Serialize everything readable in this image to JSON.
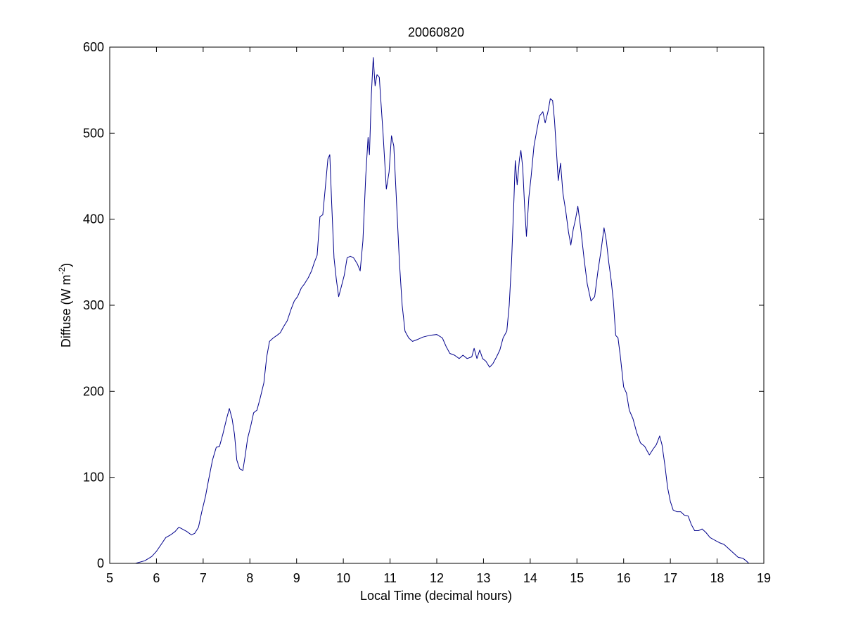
{
  "chart_data": {
    "type": "line",
    "title": "20060820",
    "xlabel": "Local Time (decimal hours)",
    "ylabel": {
      "base": "Diffuse (W m",
      "superscript": "-2",
      "close": ")"
    },
    "xlim": [
      5,
      19
    ],
    "ylim": [
      0,
      600
    ],
    "x_ticks": [
      5,
      6,
      7,
      8,
      9,
      10,
      11,
      12,
      13,
      14,
      15,
      16,
      17,
      18,
      19
    ],
    "y_ticks": [
      0,
      100,
      200,
      300,
      400,
      500,
      600
    ],
    "grid": false,
    "line_color": "#00008b",
    "series": [
      {
        "points": [
          [
            5.55,
            0
          ],
          [
            5.75,
            3
          ],
          [
            5.9,
            8
          ],
          [
            6.0,
            14
          ],
          [
            6.1,
            22
          ],
          [
            6.2,
            30
          ],
          [
            6.3,
            33
          ],
          [
            6.4,
            37
          ],
          [
            6.48,
            42
          ],
          [
            6.55,
            40
          ],
          [
            6.65,
            37
          ],
          [
            6.75,
            33
          ],
          [
            6.82,
            35
          ],
          [
            6.9,
            42
          ],
          [
            6.97,
            60
          ],
          [
            7.05,
            78
          ],
          [
            7.12,
            98
          ],
          [
            7.2,
            120
          ],
          [
            7.28,
            135
          ],
          [
            7.35,
            136
          ],
          [
            7.42,
            150
          ],
          [
            7.5,
            168
          ],
          [
            7.56,
            180
          ],
          [
            7.62,
            168
          ],
          [
            7.67,
            150
          ],
          [
            7.72,
            120
          ],
          [
            7.78,
            110
          ],
          [
            7.85,
            108
          ],
          [
            7.9,
            125
          ],
          [
            7.95,
            145
          ],
          [
            8.02,
            160
          ],
          [
            8.08,
            175
          ],
          [
            8.15,
            178
          ],
          [
            8.22,
            192
          ],
          [
            8.3,
            210
          ],
          [
            8.36,
            240
          ],
          [
            8.42,
            258
          ],
          [
            8.5,
            262
          ],
          [
            8.58,
            265
          ],
          [
            8.65,
            268
          ],
          [
            8.72,
            275
          ],
          [
            8.8,
            282
          ],
          [
            8.88,
            295
          ],
          [
            8.95,
            305
          ],
          [
            9.02,
            310
          ],
          [
            9.1,
            320
          ],
          [
            9.17,
            325
          ],
          [
            9.25,
            332
          ],
          [
            9.32,
            340
          ],
          [
            9.38,
            350
          ],
          [
            9.44,
            358
          ],
          [
            9.5,
            403
          ],
          [
            9.56,
            405
          ],
          [
            9.62,
            440
          ],
          [
            9.67,
            470
          ],
          [
            9.71,
            475
          ],
          [
            9.75,
            420
          ],
          [
            9.8,
            355
          ],
          [
            9.85,
            330
          ],
          [
            9.9,
            310
          ],
          [
            9.95,
            320
          ],
          [
            10.02,
            335
          ],
          [
            10.08,
            355
          ],
          [
            10.15,
            357
          ],
          [
            10.22,
            355
          ],
          [
            10.3,
            348
          ],
          [
            10.36,
            340
          ],
          [
            10.42,
            375
          ],
          [
            10.48,
            450
          ],
          [
            10.53,
            495
          ],
          [
            10.56,
            475
          ],
          [
            10.6,
            545
          ],
          [
            10.64,
            588
          ],
          [
            10.68,
            555
          ],
          [
            10.72,
            568
          ],
          [
            10.77,
            565
          ],
          [
            10.8,
            540
          ],
          [
            10.85,
            500
          ],
          [
            10.92,
            435
          ],
          [
            10.98,
            455
          ],
          [
            11.03,
            497
          ],
          [
            11.08,
            485
          ],
          [
            11.13,
            430
          ],
          [
            11.2,
            350
          ],
          [
            11.26,
            300
          ],
          [
            11.32,
            270
          ],
          [
            11.4,
            262
          ],
          [
            11.48,
            258
          ],
          [
            11.58,
            260
          ],
          [
            11.7,
            263
          ],
          [
            11.85,
            265
          ],
          [
            12.0,
            266
          ],
          [
            12.12,
            262
          ],
          [
            12.2,
            252
          ],
          [
            12.28,
            244
          ],
          [
            12.38,
            242
          ],
          [
            12.48,
            238
          ],
          [
            12.56,
            242
          ],
          [
            12.65,
            238
          ],
          [
            12.75,
            240
          ],
          [
            12.8,
            250
          ],
          [
            12.86,
            238
          ],
          [
            12.92,
            248
          ],
          [
            12.98,
            238
          ],
          [
            13.05,
            235
          ],
          [
            13.13,
            228
          ],
          [
            13.2,
            232
          ],
          [
            13.28,
            240
          ],
          [
            13.35,
            248
          ],
          [
            13.42,
            262
          ],
          [
            13.5,
            270
          ],
          [
            13.55,
            300
          ],
          [
            13.6,
            350
          ],
          [
            13.65,
            420
          ],
          [
            13.68,
            468
          ],
          [
            13.72,
            440
          ],
          [
            13.77,
            470
          ],
          [
            13.8,
            480
          ],
          [
            13.84,
            460
          ],
          [
            13.88,
            415
          ],
          [
            13.92,
            380
          ],
          [
            13.97,
            425
          ],
          [
            14.02,
            450
          ],
          [
            14.08,
            485
          ],
          [
            14.13,
            500
          ],
          [
            14.2,
            520
          ],
          [
            14.27,
            525
          ],
          [
            14.32,
            512
          ],
          [
            14.38,
            525
          ],
          [
            14.43,
            540
          ],
          [
            14.48,
            538
          ],
          [
            14.52,
            515
          ],
          [
            14.57,
            472
          ],
          [
            14.6,
            445
          ],
          [
            14.65,
            465
          ],
          [
            14.7,
            430
          ],
          [
            14.76,
            410
          ],
          [
            14.82,
            385
          ],
          [
            14.87,
            370
          ],
          [
            14.92,
            388
          ],
          [
            14.97,
            400
          ],
          [
            15.02,
            415
          ],
          [
            15.08,
            390
          ],
          [
            15.15,
            355
          ],
          [
            15.22,
            325
          ],
          [
            15.3,
            305
          ],
          [
            15.38,
            310
          ],
          [
            15.45,
            340
          ],
          [
            15.52,
            365
          ],
          [
            15.58,
            390
          ],
          [
            15.63,
            375
          ],
          [
            15.68,
            350
          ],
          [
            15.73,
            330
          ],
          [
            15.78,
            305
          ],
          [
            15.83,
            265
          ],
          [
            15.88,
            262
          ],
          [
            15.93,
            240
          ],
          [
            16.0,
            205
          ],
          [
            16.06,
            198
          ],
          [
            16.12,
            178
          ],
          [
            16.2,
            168
          ],
          [
            16.28,
            152
          ],
          [
            16.36,
            140
          ],
          [
            16.45,
            136
          ],
          [
            16.55,
            126
          ],
          [
            16.62,
            132
          ],
          [
            16.7,
            138
          ],
          [
            16.77,
            148
          ],
          [
            16.82,
            138
          ],
          [
            16.88,
            115
          ],
          [
            16.94,
            88
          ],
          [
            17.0,
            72
          ],
          [
            17.06,
            62
          ],
          [
            17.14,
            60
          ],
          [
            17.22,
            60
          ],
          [
            17.3,
            56
          ],
          [
            17.38,
            55
          ],
          [
            17.45,
            45
          ],
          [
            17.52,
            38
          ],
          [
            17.6,
            38
          ],
          [
            17.68,
            40
          ],
          [
            17.76,
            36
          ],
          [
            17.85,
            30
          ],
          [
            17.95,
            27
          ],
          [
            18.05,
            24
          ],
          [
            18.15,
            22
          ],
          [
            18.25,
            17
          ],
          [
            18.35,
            12
          ],
          [
            18.45,
            7
          ],
          [
            18.55,
            6
          ],
          [
            18.62,
            3
          ],
          [
            18.68,
            0
          ]
        ]
      }
    ]
  }
}
